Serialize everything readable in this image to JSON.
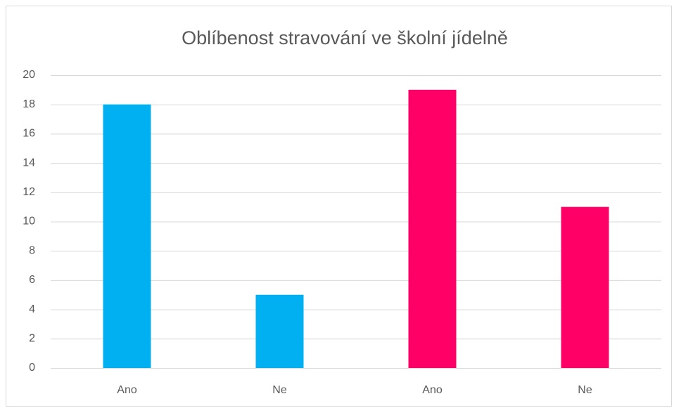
{
  "chart_data": {
    "type": "bar",
    "title": "Oblíbenost stravování ve školní jídelně",
    "categories": [
      "Ano",
      "Ne",
      "Ano",
      "Ne"
    ],
    "values": [
      18,
      5,
      19,
      11
    ],
    "colors": [
      "#00b0f0",
      "#00b0f0",
      "#ff0066",
      "#ff0066"
    ],
    "ylim": [
      0,
      20
    ],
    "yticks": [
      0,
      2,
      4,
      6,
      8,
      10,
      12,
      14,
      16,
      18,
      20
    ],
    "grid": true
  }
}
